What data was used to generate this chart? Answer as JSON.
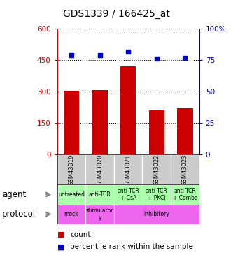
{
  "title": "GDS1339 / 166425_at",
  "samples": [
    "GSM43019",
    "GSM43020",
    "GSM43021",
    "GSM43022",
    "GSM43023"
  ],
  "counts": [
    305,
    308,
    420,
    210,
    220
  ],
  "percentile_ranks": [
    79,
    79,
    82,
    76,
    77
  ],
  "ylim_left": [
    0,
    600
  ],
  "ylim_right": [
    0,
    100
  ],
  "yticks_left": [
    0,
    150,
    300,
    450,
    600
  ],
  "yticks_right": [
    0,
    25,
    50,
    75,
    100
  ],
  "bar_color": "#cc0000",
  "scatter_color": "#0000cc",
  "agent_spans": [
    [
      0,
      1,
      "untreated",
      "#aaffaa"
    ],
    [
      1,
      2,
      "anti-TCR",
      "#aaffaa"
    ],
    [
      2,
      3,
      "anti-TCR\n+ CsA",
      "#aaffaa"
    ],
    [
      3,
      4,
      "anti-TCR\n+ PKCi",
      "#aaffaa"
    ],
    [
      4,
      5,
      "anti-TCR\n+ Combo",
      "#aaffaa"
    ]
  ],
  "protocol_spans": [
    [
      0,
      1,
      "mock",
      "#ee66ee"
    ],
    [
      1,
      2,
      "stimulator\ny",
      "#ee66ee"
    ],
    [
      2,
      5,
      "inhibitory",
      "#ee66ee"
    ]
  ],
  "sample_bg_color": "#cccccc",
  "legend_count_color": "#cc0000",
  "legend_pct_color": "#0000cc",
  "left_tick_color": "#cc0000",
  "right_tick_color": "#0000cc",
  "agent_label_color": "#888888",
  "protocol_label_color": "#888888"
}
